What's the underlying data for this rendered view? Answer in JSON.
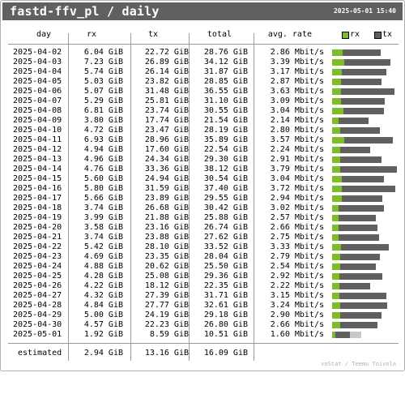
{
  "header": {
    "title": "fastd-ffv_pl / daily",
    "timestamp": "2025-05-01 15:40"
  },
  "columns": {
    "day": "day",
    "rx": "rx",
    "tx": "tx",
    "total": "total",
    "rate": "avg. rate"
  },
  "legend": {
    "rx_label": "rx",
    "tx_label": "tx"
  },
  "colors": {
    "rx": "#7ebd28",
    "tx": "#606060",
    "header_bg": "#606060"
  },
  "rows": [
    {
      "day": "2025-04-02",
      "rx": "6.04 GiB",
      "tx": "22.72 GiB",
      "total": "28.76 GiB",
      "rate": "2.86 Mbit/s"
    },
    {
      "day": "2025-04-03",
      "rx": "7.23 GiB",
      "tx": "26.89 GiB",
      "total": "34.12 GiB",
      "rate": "3.39 Mbit/s"
    },
    {
      "day": "2025-04-04",
      "rx": "5.74 GiB",
      "tx": "26.14 GiB",
      "total": "31.87 GiB",
      "rate": "3.17 Mbit/s"
    },
    {
      "day": "2025-04-05",
      "rx": "5.03 GiB",
      "tx": "23.82 GiB",
      "total": "28.85 GiB",
      "rate": "2.87 Mbit/s"
    },
    {
      "day": "2025-04-06",
      "rx": "5.07 GiB",
      "tx": "31.48 GiB",
      "total": "36.55 GiB",
      "rate": "3.63 Mbit/s"
    },
    {
      "day": "2025-04-07",
      "rx": "5.29 GiB",
      "tx": "25.81 GiB",
      "total": "31.10 GiB",
      "rate": "3.09 Mbit/s"
    },
    {
      "day": "2025-04-08",
      "rx": "6.81 GiB",
      "tx": "23.74 GiB",
      "total": "30.55 GiB",
      "rate": "3.04 Mbit/s"
    },
    {
      "day": "2025-04-09",
      "rx": "3.80 GiB",
      "tx": "17.74 GiB",
      "total": "21.54 GiB",
      "rate": "2.14 Mbit/s"
    },
    {
      "day": "2025-04-10",
      "rx": "4.72 GiB",
      "tx": "23.47 GiB",
      "total": "28.19 GiB",
      "rate": "2.80 Mbit/s"
    },
    {
      "day": "2025-04-11",
      "rx": "6.93 GiB",
      "tx": "28.96 GiB",
      "total": "35.89 GiB",
      "rate": "3.57 Mbit/s"
    },
    {
      "day": "2025-04-12",
      "rx": "4.94 GiB",
      "tx": "17.60 GiB",
      "total": "22.54 GiB",
      "rate": "2.24 Mbit/s"
    },
    {
      "day": "2025-04-13",
      "rx": "4.96 GiB",
      "tx": "24.34 GiB",
      "total": "29.30 GiB",
      "rate": "2.91 Mbit/s"
    },
    {
      "day": "2025-04-14",
      "rx": "4.76 GiB",
      "tx": "33.36 GiB",
      "total": "38.12 GiB",
      "rate": "3.79 Mbit/s"
    },
    {
      "day": "2025-04-15",
      "rx": "5.60 GiB",
      "tx": "24.94 GiB",
      "total": "30.54 GiB",
      "rate": "3.04 Mbit/s"
    },
    {
      "day": "2025-04-16",
      "rx": "5.80 GiB",
      "tx": "31.59 GiB",
      "total": "37.40 GiB",
      "rate": "3.72 Mbit/s"
    },
    {
      "day": "2025-04-17",
      "rx": "5.66 GiB",
      "tx": "23.89 GiB",
      "total": "29.55 GiB",
      "rate": "2.94 Mbit/s"
    },
    {
      "day": "2025-04-18",
      "rx": "3.74 GiB",
      "tx": "26.68 GiB",
      "total": "30.42 GiB",
      "rate": "3.02 Mbit/s"
    },
    {
      "day": "2025-04-19",
      "rx": "3.99 GiB",
      "tx": "21.88 GiB",
      "total": "25.88 GiB",
      "rate": "2.57 Mbit/s"
    },
    {
      "day": "2025-04-20",
      "rx": "3.58 GiB",
      "tx": "23.16 GiB",
      "total": "26.74 GiB",
      "rate": "2.66 Mbit/s"
    },
    {
      "day": "2025-04-21",
      "rx": "3.74 GiB",
      "tx": "23.88 GiB",
      "total": "27.62 GiB",
      "rate": "2.75 Mbit/s"
    },
    {
      "day": "2025-04-22",
      "rx": "5.42 GiB",
      "tx": "28.10 GiB",
      "total": "33.52 GiB",
      "rate": "3.33 Mbit/s"
    },
    {
      "day": "2025-04-23",
      "rx": "4.69 GiB",
      "tx": "23.35 GiB",
      "total": "28.04 GiB",
      "rate": "2.79 Mbit/s"
    },
    {
      "day": "2025-04-24",
      "rx": "4.88 GiB",
      "tx": "20.62 GiB",
      "total": "25.50 GiB",
      "rate": "2.54 Mbit/s"
    },
    {
      "day": "2025-04-25",
      "rx": "4.28 GiB",
      "tx": "25.08 GiB",
      "total": "29.36 GiB",
      "rate": "2.92 Mbit/s"
    },
    {
      "day": "2025-04-26",
      "rx": "4.22 GiB",
      "tx": "18.12 GiB",
      "total": "22.35 GiB",
      "rate": "2.22 Mbit/s"
    },
    {
      "day": "2025-04-27",
      "rx": "4.32 GiB",
      "tx": "27.39 GiB",
      "total": "31.71 GiB",
      "rate": "3.15 Mbit/s"
    },
    {
      "day": "2025-04-28",
      "rx": "4.84 GiB",
      "tx": "27.77 GiB",
      "total": "32.61 GiB",
      "rate": "3.24 Mbit/s"
    },
    {
      "day": "2025-04-29",
      "rx": "5.00 GiB",
      "tx": "24.19 GiB",
      "total": "29.18 GiB",
      "rate": "2.90 Mbit/s"
    },
    {
      "day": "2025-04-30",
      "rx": "4.57 GiB",
      "tx": "22.23 GiB",
      "total": "26.80 GiB",
      "rate": "2.66 Mbit/s"
    },
    {
      "day": "2025-05-01",
      "rx": "1.92 GiB",
      "tx": "8.59 GiB",
      "total": "10.51 GiB",
      "rate": "1.60 Mbit/s"
    }
  ],
  "estimated": {
    "label": "estimated",
    "rx": "2.94 GiB",
    "tx": "13.16 GiB",
    "total": "16.09 GiB"
  },
  "footer": {
    "credit": "vnStat / Teemu Toivola"
  }
}
